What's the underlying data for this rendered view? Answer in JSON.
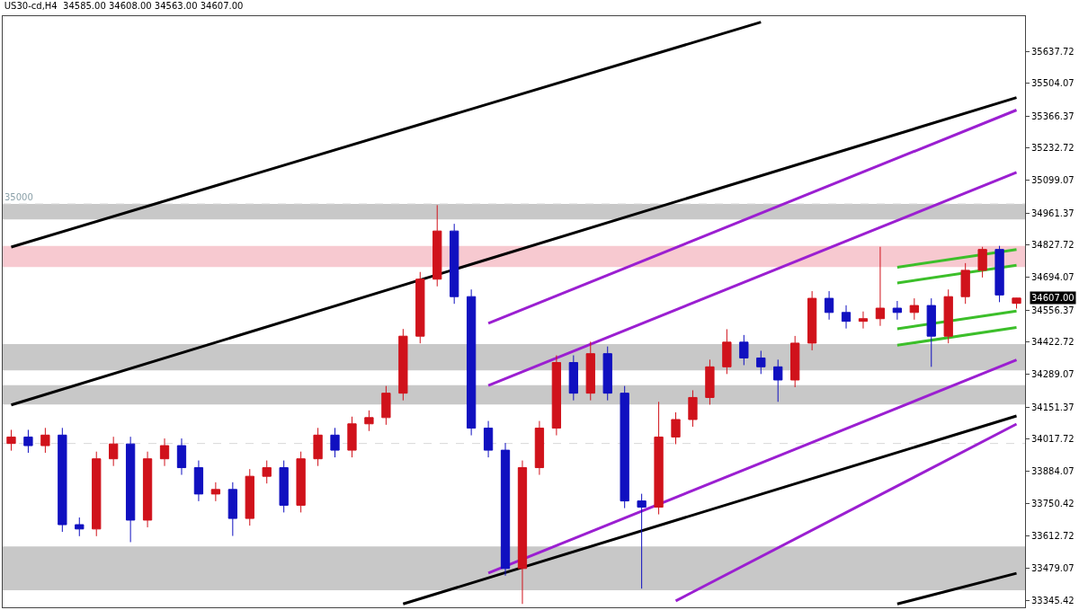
{
  "chart_data": {
    "type": "candlestick",
    "title": "US30-cd,H4  34585.00 34608.00 34563.00 34607.00",
    "categories": [
      null,
      null,
      null,
      null,
      null,
      null,
      null,
      null,
      null,
      null,
      null,
      null,
      null,
      null,
      null,
      null,
      null,
      null,
      null,
      null,
      null,
      null,
      null,
      null,
      null,
      null,
      null,
      null,
      null,
      null,
      null,
      null,
      null,
      null,
      null,
      null,
      null,
      null,
      null,
      null,
      null,
      null,
      null,
      null,
      null,
      null,
      null,
      null,
      null,
      null,
      null,
      null,
      null,
      null,
      null,
      null,
      null,
      null,
      null,
      null
    ],
    "ohlc": [
      [
        34000,
        34057,
        33970,
        34027
      ],
      [
        34027,
        34057,
        33961,
        33991
      ],
      [
        33991,
        34065,
        33961,
        34035
      ],
      [
        34035,
        34065,
        33631,
        33661
      ],
      [
        33661,
        33691,
        33613,
        33643
      ],
      [
        33643,
        33966,
        33613,
        33936
      ],
      [
        33936,
        34028,
        33906,
        33998
      ],
      [
        33998,
        34028,
        33588,
        33680
      ],
      [
        33680,
        33966,
        33650,
        33936
      ],
      [
        33936,
        34021,
        33906,
        33991
      ],
      [
        33991,
        34021,
        33869,
        33899
      ],
      [
        33899,
        33929,
        33759,
        33789
      ],
      [
        33789,
        33838,
        33759,
        33808
      ],
      [
        33808,
        33838,
        33614,
        33687
      ],
      [
        33687,
        33893,
        33657,
        33863
      ],
      [
        33863,
        33929,
        33833,
        33899
      ],
      [
        33899,
        33929,
        33712,
        33742
      ],
      [
        33742,
        33966,
        33712,
        33936
      ],
      [
        33936,
        34065,
        33906,
        34035
      ],
      [
        34035,
        34065,
        33942,
        33972
      ],
      [
        33972,
        34112,
        33942,
        34082
      ],
      [
        34082,
        34138,
        34052,
        34108
      ],
      [
        34108,
        34240,
        34078,
        34210
      ],
      [
        34210,
        34478,
        34180,
        34448
      ],
      [
        34448,
        34716,
        34418,
        34686
      ],
      [
        34686,
        34995,
        34656,
        34887
      ],
      [
        34887,
        34917,
        34583,
        34613
      ],
      [
        34613,
        34643,
        34034,
        34064
      ],
      [
        34064,
        34094,
        33942,
        33972
      ],
      [
        33972,
        34002,
        33448,
        33478
      ],
      [
        33478,
        33929,
        33330,
        33899
      ],
      [
        33899,
        34094,
        33869,
        34064
      ],
      [
        34064,
        34368,
        34034,
        34338
      ],
      [
        34338,
        34368,
        34180,
        34210
      ],
      [
        34210,
        34425,
        34180,
        34375
      ],
      [
        34375,
        34405,
        34180,
        34210
      ],
      [
        34210,
        34240,
        33730,
        33760
      ],
      [
        33760,
        33790,
        33394,
        33734
      ],
      [
        33734,
        34174,
        33704,
        34027
      ],
      [
        34027,
        34130,
        33997,
        34100
      ],
      [
        34100,
        34222,
        34070,
        34192
      ],
      [
        34192,
        34350,
        34162,
        34320
      ],
      [
        34320,
        34477,
        34290,
        34423
      ],
      [
        34423,
        34453,
        34327,
        34357
      ],
      [
        34357,
        34387,
        34290,
        34320
      ],
      [
        34320,
        34350,
        34174,
        34265
      ],
      [
        34265,
        34449,
        34235,
        34419
      ],
      [
        34419,
        34636,
        34389,
        34606
      ],
      [
        34606,
        34636,
        34517,
        34547
      ],
      [
        34547,
        34577,
        34480,
        34510
      ],
      [
        34510,
        34551,
        34480,
        34521
      ],
      [
        34521,
        34821,
        34491,
        34565
      ],
      [
        34565,
        34595,
        34517,
        34547
      ],
      [
        34547,
        34606,
        34517,
        34576
      ],
      [
        34576,
        34606,
        34320,
        34448
      ],
      [
        34448,
        34643,
        34418,
        34613
      ],
      [
        34613,
        34753,
        34583,
        34723
      ],
      [
        34723,
        34821,
        34693,
        34810
      ],
      [
        34810,
        34825,
        34590,
        34620
      ],
      [
        34585,
        34608,
        34563,
        34607
      ]
    ],
    "colors": [
      "#d0121b",
      "#1010c0",
      "#d0121b",
      "#1010c0",
      "#1010c0",
      "#d0121b",
      "#d0121b",
      "#1010c0",
      "#d0121b",
      "#d0121b",
      "#1010c0",
      "#1010c0",
      "#d0121b",
      "#1010c0",
      "#d0121b",
      "#d0121b",
      "#1010c0",
      "#d0121b",
      "#d0121b",
      "#1010c0",
      "#d0121b",
      "#d0121b",
      "#d0121b",
      "#d0121b",
      "#d0121b",
      "#d0121b",
      "#1010c0",
      "#1010c0",
      "#1010c0",
      "#1010c0",
      "#d0121b",
      "#d0121b",
      "#d0121b",
      "#1010c0",
      "#d0121b",
      "#1010c0",
      "#1010c0",
      "#1010c0",
      "#d0121b",
      "#d0121b",
      "#d0121b",
      "#d0121b",
      "#d0121b",
      "#1010c0",
      "#1010c0",
      "#1010c0",
      "#d0121b",
      "#d0121b",
      "#1010c0",
      "#1010c0",
      "#d0121b",
      "#d0121b",
      "#1010c0",
      "#d0121b",
      "#1010c0",
      "#d0121b",
      "#d0121b",
      "#d0121b",
      "#1010c0",
      "#d0121b"
    ],
    "series": [
      {
        "type": "line",
        "color": "#000000",
        "values": [
          34820,
          null,
          null,
          null,
          null,
          null,
          null,
          null,
          null,
          null,
          null,
          null,
          null,
          null,
          null,
          null,
          null,
          null,
          null,
          null,
          null,
          null,
          null,
          null,
          null,
          null,
          null,
          null,
          null,
          null,
          null,
          null,
          null,
          null,
          null,
          null,
          null,
          null,
          null,
          null,
          null,
          null,
          null,
          null,
          35759,
          null,
          null,
          null,
          null,
          null,
          null,
          null,
          null,
          null,
          null,
          null,
          null,
          null,
          null,
          null
        ]
      },
      {
        "type": "line",
        "color": "#000000",
        "values": [
          34161,
          null,
          null,
          null,
          null,
          null,
          null,
          null,
          null,
          null,
          null,
          null,
          null,
          null,
          null,
          null,
          null,
          null,
          null,
          null,
          null,
          null,
          null,
          null,
          null,
          null,
          null,
          null,
          null,
          null,
          null,
          null,
          null,
          null,
          null,
          null,
          null,
          null,
          null,
          null,
          null,
          null,
          null,
          null,
          null,
          null,
          null,
          null,
          null,
          null,
          null,
          null,
          null,
          null,
          null,
          null,
          null,
          null,
          null,
          35444
        ]
      },
      {
        "type": "line",
        "color": "#000000",
        "values": [
          null,
          null,
          null,
          null,
          null,
          null,
          null,
          null,
          null,
          null,
          null,
          null,
          null,
          null,
          null,
          null,
          null,
          null,
          null,
          null,
          null,
          null,
          null,
          33330,
          null,
          null,
          null,
          null,
          null,
          null,
          null,
          null,
          null,
          null,
          null,
          null,
          null,
          null,
          null,
          null,
          null,
          null,
          null,
          null,
          null,
          null,
          null,
          null,
          null,
          null,
          null,
          null,
          null,
          null,
          null,
          null,
          null,
          null,
          null,
          34115
        ]
      },
      {
        "type": "line",
        "color": "#000000",
        "values": [
          null,
          null,
          null,
          null,
          null,
          null,
          null,
          null,
          null,
          null,
          null,
          null,
          null,
          null,
          null,
          null,
          null,
          null,
          null,
          null,
          null,
          null,
          null,
          null,
          null,
          null,
          null,
          null,
          null,
          null,
          null,
          null,
          null,
          null,
          null,
          null,
          null,
          null,
          null,
          null,
          null,
          null,
          null,
          null,
          null,
          null,
          null,
          null,
          null,
          null,
          null,
          null,
          33330,
          null,
          null,
          null,
          null,
          null,
          null,
          33458
        ]
      },
      {
        "type": "line",
        "color": "#9b1fd1",
        "values": [
          null,
          null,
          null,
          null,
          null,
          null,
          null,
          null,
          null,
          null,
          null,
          null,
          null,
          null,
          null,
          null,
          null,
          null,
          null,
          null,
          null,
          null,
          null,
          null,
          null,
          null,
          null,
          null,
          34502,
          null,
          null,
          null,
          null,
          null,
          null,
          null,
          null,
          null,
          null,
          null,
          null,
          null,
          null,
          null,
          null,
          null,
          null,
          null,
          null,
          null,
          null,
          null,
          null,
          null,
          null,
          null,
          null,
          null,
          null,
          35392
        ]
      },
      {
        "type": "line",
        "color": "#9b1fd1",
        "values": [
          null,
          null,
          null,
          null,
          null,
          null,
          null,
          null,
          null,
          null,
          null,
          null,
          null,
          null,
          null,
          null,
          null,
          null,
          null,
          null,
          null,
          null,
          null,
          null,
          null,
          null,
          null,
          null,
          34242,
          null,
          null,
          null,
          null,
          null,
          null,
          null,
          null,
          null,
          null,
          null,
          null,
          null,
          null,
          null,
          null,
          null,
          null,
          null,
          null,
          null,
          null,
          null,
          null,
          null,
          null,
          null,
          null,
          null,
          null,
          35132
        ]
      },
      {
        "type": "line",
        "color": "#9b1fd1",
        "values": [
          null,
          null,
          null,
          null,
          null,
          null,
          null,
          null,
          null,
          null,
          null,
          null,
          null,
          null,
          null,
          null,
          null,
          null,
          null,
          null,
          null,
          null,
          null,
          null,
          null,
          null,
          null,
          null,
          33459,
          null,
          null,
          null,
          null,
          null,
          null,
          null,
          null,
          null,
          null,
          null,
          null,
          null,
          null,
          null,
          null,
          null,
          null,
          null,
          null,
          null,
          null,
          null,
          null,
          null,
          null,
          null,
          null,
          null,
          null,
          34349
        ]
      },
      {
        "type": "line",
        "color": "#9b1fd1",
        "values": [
          null,
          null,
          null,
          null,
          null,
          null,
          null,
          null,
          null,
          null,
          null,
          null,
          null,
          null,
          null,
          null,
          null,
          null,
          null,
          null,
          null,
          null,
          null,
          null,
          null,
          null,
          null,
          null,
          null,
          null,
          null,
          null,
          null,
          null,
          null,
          null,
          null,
          null,
          null,
          33343,
          null,
          null,
          null,
          null,
          null,
          null,
          null,
          null,
          null,
          null,
          null,
          null,
          null,
          null,
          null,
          null,
          null,
          null,
          null,
          34081
        ]
      },
      {
        "type": "line",
        "color": "#3cbf2a",
        "values": [
          null,
          null,
          null,
          null,
          null,
          null,
          null,
          null,
          null,
          null,
          null,
          null,
          null,
          null,
          null,
          null,
          null,
          null,
          null,
          null,
          null,
          null,
          null,
          null,
          null,
          null,
          null,
          null,
          null,
          null,
          null,
          null,
          null,
          null,
          null,
          null,
          null,
          null,
          null,
          null,
          null,
          null,
          null,
          null,
          null,
          null,
          null,
          null,
          null,
          null,
          null,
          null,
          34736,
          null,
          null,
          null,
          null,
          null,
          null,
          34810
        ]
      },
      {
        "type": "line",
        "color": "#3cbf2a",
        "values": [
          null,
          null,
          null,
          null,
          null,
          null,
          null,
          null,
          null,
          null,
          null,
          null,
          null,
          null,
          null,
          null,
          null,
          null,
          null,
          null,
          null,
          null,
          null,
          null,
          null,
          null,
          null,
          null,
          null,
          null,
          null,
          null,
          null,
          null,
          null,
          null,
          null,
          null,
          null,
          null,
          null,
          null,
          null,
          null,
          null,
          null,
          null,
          null,
          null,
          null,
          null,
          null,
          34670,
          null,
          null,
          null,
          null,
          null,
          null,
          34744
        ]
      },
      {
        "type": "line",
        "color": "#3cbf2a",
        "values": [
          null,
          null,
          null,
          null,
          null,
          null,
          null,
          null,
          null,
          null,
          null,
          null,
          null,
          null,
          null,
          null,
          null,
          null,
          null,
          null,
          null,
          null,
          null,
          null,
          null,
          null,
          null,
          null,
          null,
          null,
          null,
          null,
          null,
          null,
          null,
          null,
          null,
          null,
          null,
          null,
          null,
          null,
          null,
          null,
          null,
          null,
          null,
          null,
          null,
          null,
          null,
          null,
          34479,
          null,
          null,
          null,
          null,
          null,
          null,
          34553
        ]
      },
      {
        "type": "line",
        "color": "#3cbf2a",
        "values": [
          null,
          null,
          null,
          null,
          null,
          null,
          null,
          null,
          null,
          null,
          null,
          null,
          null,
          null,
          null,
          null,
          null,
          null,
          null,
          null,
          null,
          null,
          null,
          null,
          null,
          null,
          null,
          null,
          null,
          null,
          null,
          null,
          null,
          null,
          null,
          null,
          null,
          null,
          null,
          null,
          null,
          null,
          null,
          null,
          null,
          null,
          null,
          null,
          null,
          null,
          null,
          null,
          34410,
          null,
          null,
          null,
          null,
          null,
          null,
          34484
        ]
      }
    ],
    "ref_lines": [
      {
        "axis": "y",
        "value": 35000,
        "label": "35000",
        "color": "#d8d8d8",
        "line_style": "dashed"
      },
      {
        "axis": "y",
        "value": 34000,
        "label": null,
        "color": "#d8d8d8",
        "line_style": "dashed"
      }
    ],
    "bands": [
      {
        "axis": "y",
        "from": 34935,
        "to": 35000,
        "color": "#c8c8c8"
      },
      {
        "axis": "y",
        "from": 34737,
        "to": 34825,
        "color": "#f7c9d0"
      },
      {
        "axis": "y",
        "from": 34305,
        "to": 34415,
        "color": "#c8c8c8"
      },
      {
        "axis": "y",
        "from": 34163,
        "to": 34243,
        "color": "#c8c8c8"
      },
      {
        "axis": "y",
        "from": 33387,
        "to": 33570,
        "color": "#c8c8c8"
      }
    ],
    "annotations": [
      "34607.00"
    ],
    "ylim": [
      33316,
      35784
    ],
    "yticks": [
      35637.72,
      35504.07,
      35366.37,
      35232.72,
      35099.07,
      34961.37,
      34827.72,
      34694.07,
      34556.37,
      34422.72,
      34289.07,
      34151.37,
      34017.72,
      33884.07,
      33750.42,
      33612.72,
      33479.07,
      33345.42
    ],
    "tick_labels": "y",
    "grid": false
  }
}
